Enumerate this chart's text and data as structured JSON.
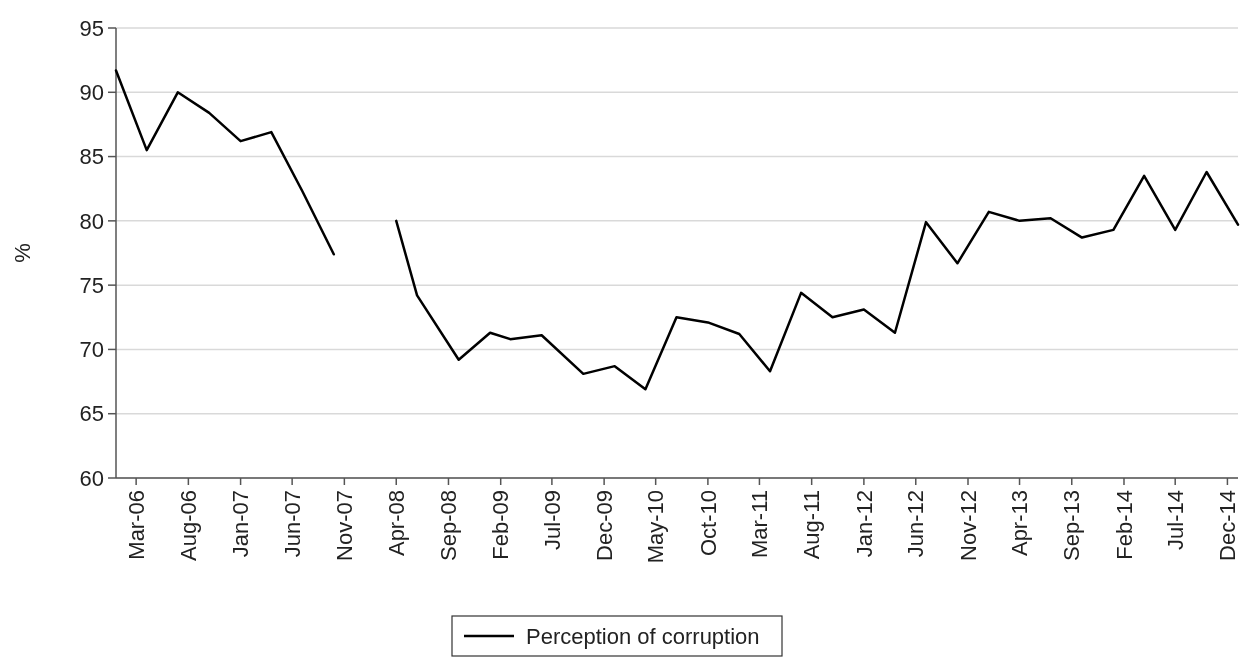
{
  "chart_data": {
    "type": "line",
    "ylabel": "%",
    "legend": "bottom",
    "grid": "y",
    "line_style": "solid",
    "marker": "none",
    "xlim": [
      "2006-01",
      "2015-01"
    ],
    "ylim": [
      60,
      95
    ],
    "yticks": [
      60,
      65,
      70,
      75,
      80,
      85,
      90,
      95
    ],
    "xticks": [
      {
        "value": "2006-03",
        "label": "Mar-06"
      },
      {
        "value": "2006-08",
        "label": "Aug-06"
      },
      {
        "value": "2007-01",
        "label": "Jan-07"
      },
      {
        "value": "2007-06",
        "label": "Jun-07"
      },
      {
        "value": "2007-11",
        "label": "Nov-07"
      },
      {
        "value": "2008-04",
        "label": "Apr-08"
      },
      {
        "value": "2008-09",
        "label": "Sep-08"
      },
      {
        "value": "2009-02",
        "label": "Feb-09"
      },
      {
        "value": "2009-07",
        "label": "Jul-09"
      },
      {
        "value": "2009-12",
        "label": "Dec-09"
      },
      {
        "value": "2010-05",
        "label": "May-10"
      },
      {
        "value": "2010-10",
        "label": "Oct-10"
      },
      {
        "value": "2011-03",
        "label": "Mar-11"
      },
      {
        "value": "2011-08",
        "label": "Aug-11"
      },
      {
        "value": "2012-01",
        "label": "Jan-12"
      },
      {
        "value": "2012-06",
        "label": "Jun-12"
      },
      {
        "value": "2012-11",
        "label": "Nov-12"
      },
      {
        "value": "2013-04",
        "label": "Apr-13"
      },
      {
        "value": "2013-09",
        "label": "Sep-13"
      },
      {
        "value": "2014-02",
        "label": "Feb-14"
      },
      {
        "value": "2014-07",
        "label": "Jul-14"
      },
      {
        "value": "2014-12",
        "label": "Dec-14"
      }
    ],
    "x": [
      "2006-01",
      "2006-04",
      "2006-07",
      "2006-10",
      "2007-01",
      "2007-04",
      "2007-07",
      "2007-10",
      "2008-01",
      "2008-04",
      "2008-06",
      "2008-10",
      "2009-01",
      "2009-03",
      "2009-06",
      "2009-10",
      "2010-01",
      "2010-04",
      "2010-07",
      "2010-10",
      "2011-01",
      "2011-04",
      "2011-07",
      "2011-10",
      "2012-01",
      "2012-04",
      "2012-07",
      "2012-10",
      "2013-01",
      "2013-04",
      "2013-07",
      "2013-10",
      "2014-01",
      "2014-04",
      "2014-07",
      "2014-10",
      "2015-01"
    ],
    "series": [
      {
        "name": "Perception of corruption",
        "color": "#000000",
        "values": [
          91.7,
          85.5,
          90.0,
          88.4,
          86.2,
          86.9,
          82.3,
          77.4,
          null,
          80.0,
          74.2,
          69.2,
          71.3,
          70.8,
          71.1,
          68.1,
          68.7,
          66.9,
          72.5,
          72.1,
          71.2,
          68.3,
          74.4,
          72.5,
          73.1,
          71.3,
          79.9,
          76.7,
          80.7,
          80.0,
          80.2,
          78.7,
          79.3,
          83.5,
          79.3,
          83.8,
          79.7
        ]
      }
    ]
  }
}
